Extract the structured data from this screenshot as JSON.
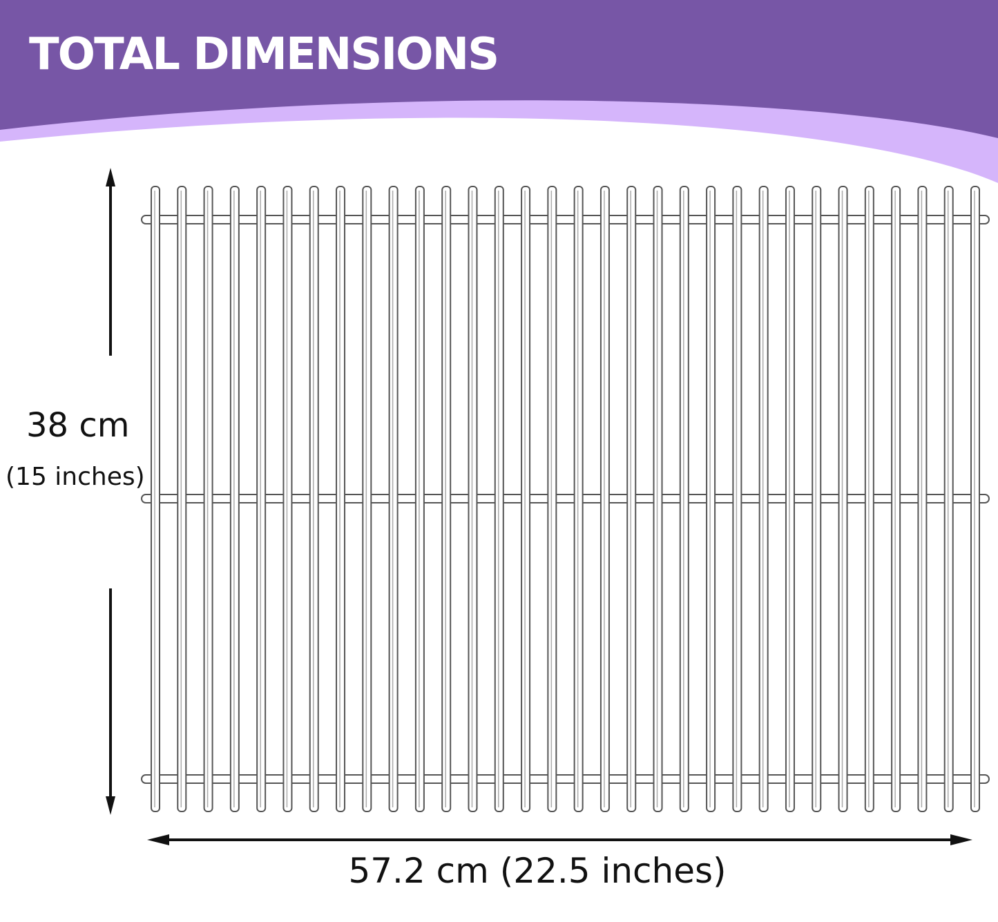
{
  "header": {
    "title": "TOTAL DIMENSIONS"
  },
  "dimensions": {
    "height_cm": "38 cm",
    "height_in": "(15 inches)",
    "width": "57.2 cm  (22.5 inches)"
  }
}
